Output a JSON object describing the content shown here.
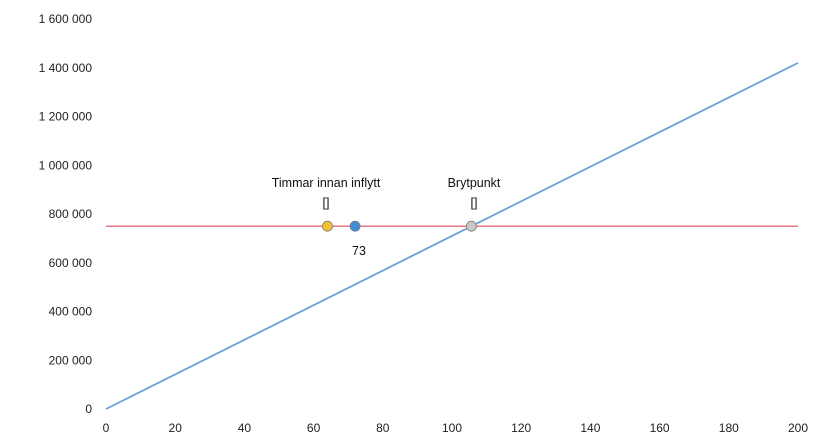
{
  "chart_data": {
    "type": "line",
    "x_range": [
      0,
      200
    ],
    "y_range": [
      0,
      1600000
    ],
    "x_ticks": [
      "0",
      "20",
      "40",
      "60",
      "80",
      "100",
      "120",
      "140",
      "160",
      "180",
      "200"
    ],
    "y_ticks": [
      "0",
      "200 000",
      "400 000",
      "600 000",
      "800 000",
      "1 000 000",
      "1 200 000",
      "1 400 000",
      "1 600 000"
    ],
    "grid": false,
    "legend": "none",
    "series": [
      {
        "color": "#6a9fde",
        "x": [
          0,
          200
        ],
        "y": [
          0,
          1420000
        ]
      },
      {
        "color": "#e06a78",
        "x": [
          0,
          200
        ],
        "y": [
          750000,
          750000
        ]
      }
    ],
    "points": [
      {
        "x": 64,
        "y": 750000,
        "color": "#f2c22e"
      },
      {
        "x": 72,
        "y": 750000,
        "color": "#3e8ed8"
      },
      {
        "x": 105.6,
        "y": 750000,
        "color": "#c8c8c8"
      }
    ],
    "annotations": [
      {
        "id": "timmar",
        "title": "Timmar innan inflytt",
        "value": "[]"
      },
      {
        "id": "brytpunkt",
        "title": "Brytpunkt",
        "value": "[]"
      },
      {
        "id": "count",
        "value": "73"
      }
    ]
  }
}
